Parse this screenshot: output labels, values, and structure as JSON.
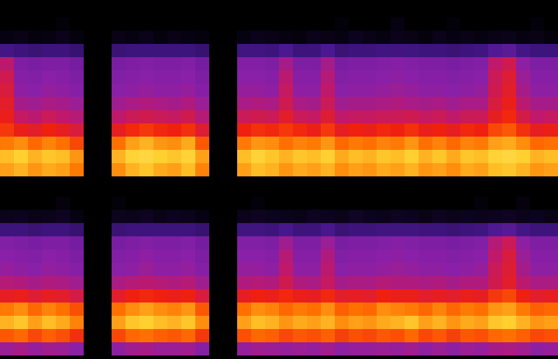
{
  "chart_data": [
    {
      "type": "heatmap",
      "tick_labels": false,
      "zlim": [
        0,
        100
      ],
      "x": [
        0,
        1,
        2,
        3,
        4,
        5,
        6,
        7,
        8,
        9,
        10,
        11,
        12,
        13,
        14,
        15,
        16,
        17,
        18,
        19,
        20,
        21,
        22,
        23,
        24,
        25,
        26,
        27,
        28,
        29,
        30,
        31,
        32,
        33,
        34,
        35,
        36,
        37,
        38,
        39
      ],
      "y": [
        0,
        1,
        2,
        3,
        4,
        5,
        6,
        7,
        8,
        9,
        10,
        11,
        12
      ],
      "cells": [
        [
          80,
          82,
          79,
          81,
          80,
          76,
          0,
          0,
          78,
          82,
          84,
          81,
          80,
          83,
          77,
          0,
          0,
          80,
          83,
          82,
          79,
          81,
          80,
          82,
          78,
          80,
          79,
          81,
          80,
          82,
          79,
          80,
          78,
          81,
          80,
          83,
          84,
          82,
          79,
          80
        ],
        [
          83,
          85,
          82,
          84,
          83,
          79,
          0,
          0,
          82,
          86,
          87,
          85,
          84,
          86,
          80,
          0,
          0,
          83,
          86,
          84,
          82,
          84,
          83,
          85,
          81,
          83,
          82,
          84,
          83,
          85,
          82,
          84,
          81,
          84,
          83,
          86,
          87,
          85,
          82,
          83
        ],
        [
          76,
          78,
          74,
          77,
          75,
          70,
          0,
          0,
          75,
          80,
          82,
          79,
          78,
          81,
          72,
          0,
          0,
          76,
          79,
          78,
          75,
          77,
          76,
          79,
          74,
          76,
          75,
          77,
          76,
          79,
          75,
          77,
          74,
          77,
          76,
          80,
          81,
          78,
          74,
          75
        ],
        [
          68,
          64,
          62,
          65,
          63,
          60,
          0,
          0,
          63,
          66,
          68,
          66,
          65,
          67,
          61,
          0,
          0,
          65,
          67,
          66,
          68,
          66,
          64,
          68,
          63,
          65,
          64,
          66,
          65,
          67,
          64,
          65,
          63,
          66,
          65,
          70,
          72,
          67,
          63,
          64
        ],
        [
          64,
          56,
          54,
          57,
          55,
          53,
          0,
          0,
          55,
          57,
          58,
          57,
          56,
          58,
          53,
          0,
          0,
          57,
          58,
          57,
          62,
          57,
          56,
          61,
          55,
          56,
          56,
          57,
          57,
          58,
          56,
          57,
          55,
          57,
          57,
          63,
          66,
          59,
          55,
          56
        ],
        [
          62,
          50,
          49,
          51,
          50,
          48,
          0,
          0,
          49,
          51,
          52,
          51,
          50,
          52,
          48,
          0,
          0,
          51,
          52,
          51,
          58,
          51,
          50,
          57,
          49,
          50,
          50,
          51,
          52,
          51,
          50,
          51,
          49,
          51,
          51,
          60,
          64,
          54,
          50,
          50
        ],
        [
          60,
          46,
          45,
          47,
          46,
          44,
          0,
          0,
          45,
          46,
          47,
          46,
          46,
          47,
          44,
          0,
          0,
          47,
          47,
          46,
          56,
          46,
          46,
          55,
          45,
          46,
          46,
          47,
          48,
          47,
          46,
          46,
          45,
          46,
          47,
          58,
          62,
          50,
          46,
          46
        ],
        [
          58,
          44,
          43,
          45,
          44,
          42,
          0,
          0,
          43,
          44,
          45,
          44,
          44,
          45,
          42,
          0,
          0,
          45,
          45,
          44,
          54,
          44,
          44,
          53,
          43,
          44,
          44,
          45,
          46,
          45,
          44,
          44,
          43,
          44,
          45,
          57,
          61,
          48,
          44,
          44
        ],
        [
          54,
          42,
          41,
          42,
          42,
          40,
          0,
          0,
          41,
          42,
          43,
          42,
          42,
          43,
          40,
          0,
          0,
          43,
          43,
          42,
          50,
          42,
          42,
          50,
          41,
          42,
          42,
          43,
          44,
          43,
          42,
          42,
          41,
          42,
          43,
          55,
          58,
          46,
          42,
          42
        ],
        [
          28,
          26,
          25,
          26,
          26,
          24,
          0,
          0,
          25,
          26,
          26,
          26,
          26,
          26,
          24,
          0,
          0,
          27,
          27,
          26,
          30,
          26,
          26,
          30,
          25,
          26,
          26,
          27,
          27,
          27,
          26,
          26,
          25,
          26,
          27,
          32,
          34,
          28,
          26,
          26
        ],
        [
          4,
          5,
          3,
          4,
          6,
          3,
          0,
          0,
          5,
          4,
          6,
          3,
          5,
          4,
          3,
          0,
          0,
          4,
          6,
          5,
          4,
          3,
          6,
          5,
          4,
          7,
          5,
          4,
          6,
          5,
          3,
          6,
          4,
          5,
          4,
          5,
          6,
          4,
          5,
          3
        ],
        [
          0,
          0,
          0,
          0,
          2,
          0,
          0,
          0,
          0,
          0,
          0,
          0,
          0,
          0,
          0,
          0,
          0,
          0,
          0,
          0,
          0,
          0,
          0,
          0,
          2,
          0,
          0,
          0,
          4,
          0,
          0,
          0,
          2,
          0,
          0,
          0,
          0,
          0,
          2,
          0
        ],
        [
          0,
          0,
          0,
          0,
          0,
          0,
          0,
          0,
          0,
          0,
          0,
          0,
          0,
          0,
          0,
          0,
          0,
          0,
          0,
          0,
          0,
          0,
          0,
          0,
          0,
          0,
          0,
          0,
          0,
          0,
          0,
          0,
          0,
          0,
          0,
          0,
          0,
          0,
          0,
          0
        ]
      ]
    },
    {
      "type": "heatmap",
      "tick_labels": false,
      "zlim": [
        0,
        100
      ],
      "x": [
        0,
        1,
        2,
        3,
        4,
        5,
        6,
        7,
        8,
        9,
        10,
        11,
        12,
        13,
        14,
        15,
        16,
        17,
        18,
        19,
        20,
        21,
        22,
        23,
        24,
        25,
        26,
        27,
        28,
        29,
        30,
        31,
        32,
        33,
        34,
        35,
        36,
        37,
        38,
        39
      ],
      "y": [
        0,
        1,
        2,
        3,
        4,
        5,
        6,
        7,
        8,
        9,
        10,
        11,
        12
      ],
      "cells": [
        [
          48,
          50,
          47,
          49,
          48,
          45,
          0,
          0,
          46,
          49,
          50,
          48,
          48,
          49,
          44,
          0,
          0,
          47,
          49,
          48,
          47,
          48,
          47,
          49,
          46,
          47,
          47,
          48,
          47,
          49,
          46,
          48,
          46,
          48,
          47,
          50,
          51,
          49,
          46,
          47
        ],
        [
          72,
          74,
          70,
          73,
          71,
          67,
          0,
          0,
          70,
          74,
          75,
          73,
          72,
          74,
          68,
          0,
          0,
          71,
          74,
          73,
          70,
          72,
          71,
          73,
          69,
          71,
          70,
          72,
          71,
          74,
          70,
          72,
          69,
          72,
          71,
          74,
          75,
          73,
          70,
          71
        ],
        [
          82,
          84,
          80,
          83,
          81,
          77,
          0,
          0,
          80,
          84,
          85,
          83,
          82,
          84,
          78,
          0,
          0,
          80,
          83,
          82,
          79,
          81,
          80,
          82,
          78,
          80,
          79,
          81,
          82,
          84,
          80,
          82,
          79,
          81,
          80,
          84,
          85,
          82,
          79,
          80
        ],
        [
          76,
          78,
          74,
          77,
          75,
          71,
          0,
          0,
          75,
          78,
          80,
          78,
          77,
          79,
          72,
          0,
          0,
          75,
          78,
          77,
          74,
          76,
          75,
          78,
          73,
          75,
          74,
          78,
          77,
          76,
          74,
          77,
          74,
          76,
          75,
          79,
          80,
          76,
          73,
          74
        ],
        [
          63,
          64,
          61,
          63,
          62,
          59,
          0,
          0,
          62,
          65,
          66,
          65,
          64,
          65,
          60,
          0,
          0,
          63,
          65,
          64,
          66,
          64,
          63,
          66,
          62,
          63,
          62,
          65,
          64,
          64,
          62,
          63,
          62,
          64,
          63,
          68,
          70,
          65,
          62,
          63
        ],
        [
          53,
          52,
          50,
          52,
          51,
          49,
          0,
          0,
          51,
          53,
          54,
          53,
          52,
          53,
          49,
          0,
          0,
          52,
          53,
          52,
          58,
          52,
          51,
          56,
          50,
          51,
          51,
          53,
          52,
          52,
          51,
          52,
          50,
          52,
          52,
          58,
          62,
          54,
          51,
          51
        ],
        [
          47,
          46,
          45,
          47,
          46,
          44,
          0,
          0,
          45,
          46,
          48,
          46,
          46,
          47,
          44,
          0,
          0,
          47,
          47,
          46,
          55,
          46,
          46,
          54,
          45,
          46,
          46,
          47,
          48,
          47,
          46,
          46,
          45,
          46,
          47,
          57,
          61,
          50,
          46,
          46
        ],
        [
          45,
          44,
          43,
          45,
          44,
          42,
          0,
          0,
          43,
          44,
          46,
          44,
          44,
          45,
          42,
          0,
          0,
          45,
          45,
          44,
          53,
          44,
          44,
          52,
          43,
          44,
          44,
          45,
          46,
          45,
          44,
          44,
          43,
          44,
          45,
          55,
          60,
          48,
          44,
          44
        ],
        [
          43,
          42,
          41,
          42,
          42,
          40,
          0,
          0,
          41,
          42,
          43,
          42,
          42,
          43,
          40,
          0,
          0,
          43,
          43,
          42,
          49,
          42,
          42,
          48,
          41,
          42,
          42,
          43,
          44,
          43,
          42,
          42,
          41,
          42,
          43,
          53,
          57,
          46,
          42,
          42
        ],
        [
          26,
          26,
          25,
          26,
          26,
          24,
          0,
          0,
          25,
          26,
          26,
          26,
          26,
          26,
          24,
          0,
          0,
          27,
          27,
          26,
          29,
          26,
          26,
          29,
          25,
          26,
          26,
          27,
          27,
          27,
          26,
          26,
          25,
          26,
          27,
          31,
          33,
          28,
          26,
          26
        ],
        [
          6,
          7,
          5,
          6,
          8,
          4,
          0,
          0,
          7,
          6,
          8,
          5,
          7,
          6,
          4,
          0,
          0,
          6,
          8,
          7,
          6,
          5,
          8,
          7,
          6,
          9,
          7,
          6,
          8,
          7,
          5,
          8,
          6,
          7,
          6,
          7,
          8,
          6,
          7,
          5
        ],
        [
          0,
          0,
          0,
          0,
          3,
          0,
          0,
          0,
          2,
          0,
          0,
          0,
          0,
          0,
          0,
          0,
          0,
          0,
          2,
          0,
          0,
          0,
          0,
          0,
          0,
          0,
          0,
          0,
          0,
          0,
          0,
          0,
          0,
          0,
          2,
          0,
          0,
          3,
          0,
          0
        ],
        [
          0,
          0,
          0,
          0,
          0,
          0,
          0,
          0,
          0,
          0,
          0,
          0,
          0,
          0,
          0,
          0,
          0,
          0,
          0,
          0,
          0,
          0,
          0,
          0,
          0,
          0,
          0,
          0,
          0,
          0,
          0,
          0,
          0,
          0,
          0,
          0,
          0,
          0,
          0,
          0
        ]
      ]
    }
  ]
}
